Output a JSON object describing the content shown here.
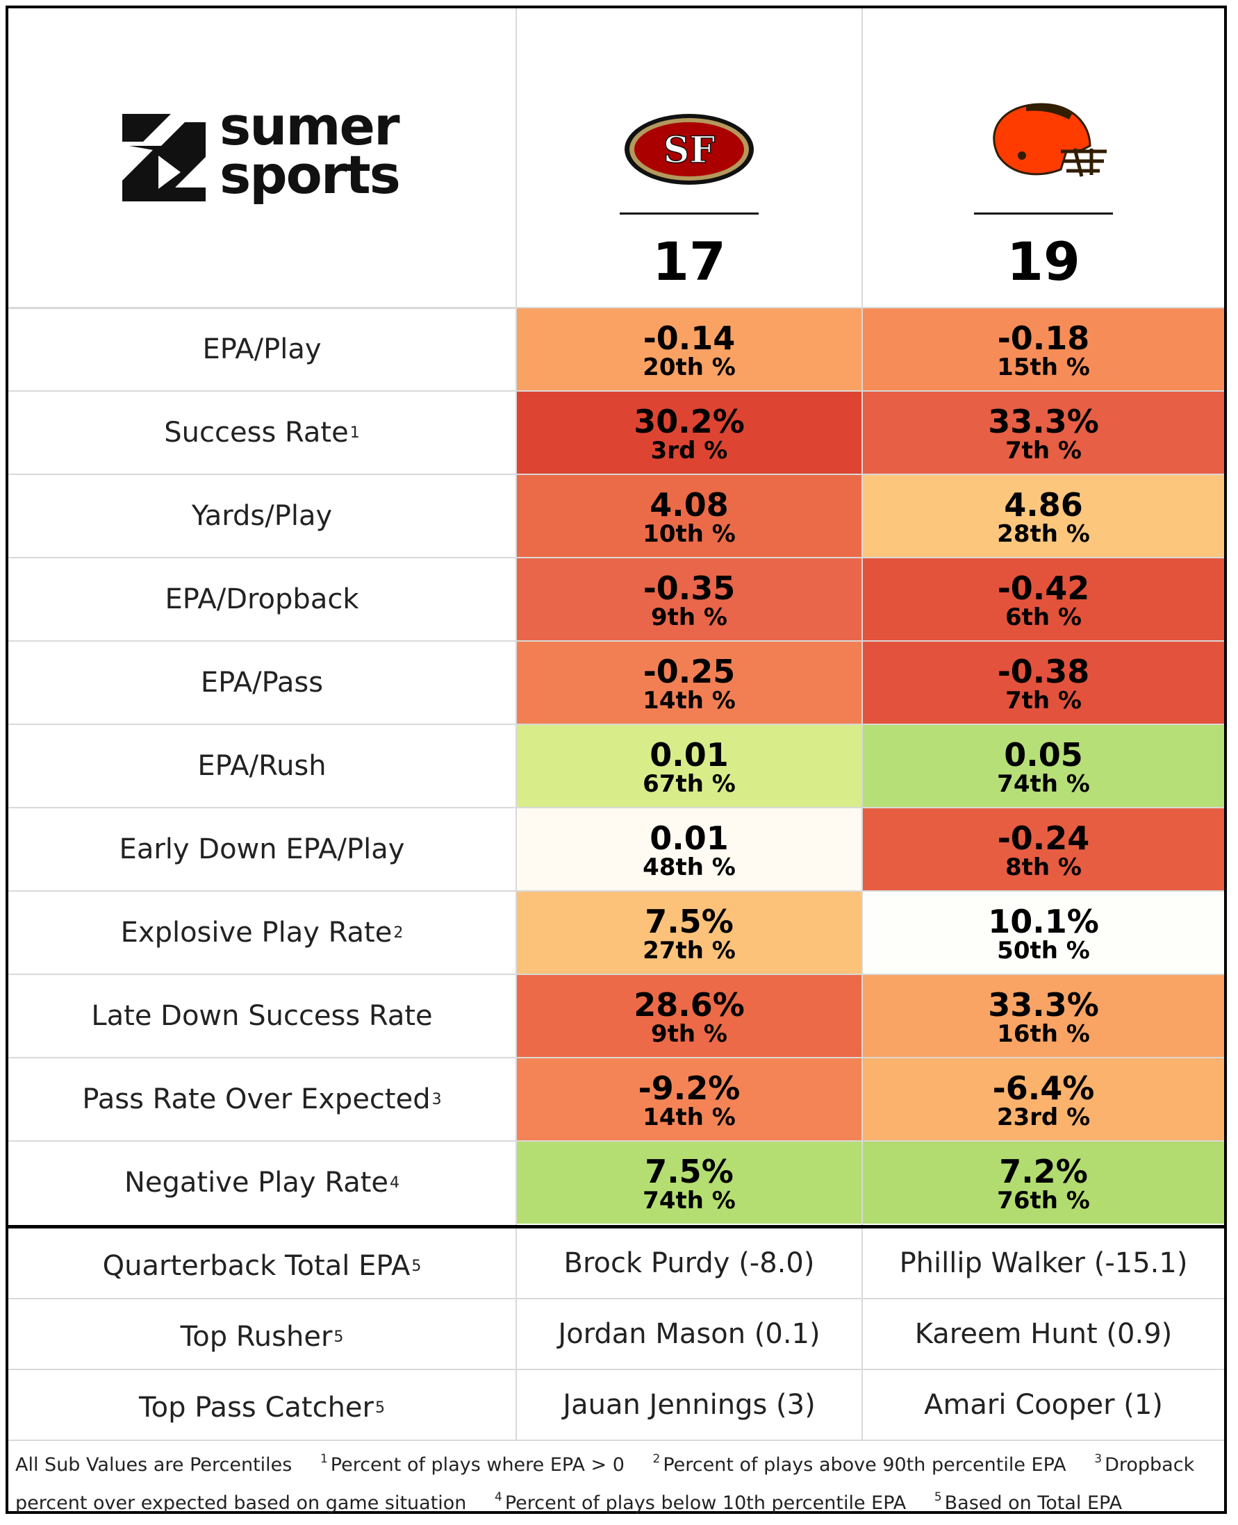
{
  "brand": {
    "line1": "sumer",
    "line2": "sports"
  },
  "teams": [
    {
      "name": "49ers",
      "logo_text": "SF",
      "score": "17"
    },
    {
      "name": "Browns",
      "score": "19"
    }
  ],
  "metrics": [
    {
      "label": "EPA/Play",
      "sup": "",
      "t1": {
        "value": "-0.14",
        "pct": "20th %",
        "color": "#f9a263"
      },
      "t2": {
        "value": "-0.18",
        "pct": "15th %",
        "color": "#f68d58"
      }
    },
    {
      "label": "Success Rate",
      "sup": "1",
      "t1": {
        "value": "30.2%",
        "pct": "3rd %",
        "color": "#dd4532"
      },
      "t2": {
        "value": "33.3%",
        "pct": "7th %",
        "color": "#e75f44"
      }
    },
    {
      "label": "Yards/Play",
      "sup": "",
      "t1": {
        "value": "4.08",
        "pct": "10th %",
        "color": "#eb6b48"
      },
      "t2": {
        "value": "4.86",
        "pct": "28th %",
        "color": "#fcc67d"
      }
    },
    {
      "label": "EPA/Dropback",
      "sup": "",
      "t1": {
        "value": "-0.35",
        "pct": "9th %",
        "color": "#e9664a"
      },
      "t2": {
        "value": "-0.42",
        "pct": "6th %",
        "color": "#e3533c"
      }
    },
    {
      "label": "EPA/Pass",
      "sup": "",
      "t1": {
        "value": "-0.25",
        "pct": "14th %",
        "color": "#f27f54"
      },
      "t2": {
        "value": "-0.38",
        "pct": "7th %",
        "color": "#e3523c"
      }
    },
    {
      "label": "EPA/Rush",
      "sup": "",
      "t1": {
        "value": "0.01",
        "pct": "67th %",
        "color": "#d8ec8a"
      },
      "t2": {
        "value": "0.05",
        "pct": "74th %",
        "color": "#b7df77"
      }
    },
    {
      "label": "Early Down EPA/Play",
      "sup": "",
      "t1": {
        "value": "0.01",
        "pct": "48th %",
        "color": "#fffbf2"
      },
      "t2": {
        "value": "-0.24",
        "pct": "8th %",
        "color": "#e75d42"
      }
    },
    {
      "label": "Explosive Play Rate",
      "sup": "2",
      "t1": {
        "value": "7.5%",
        "pct": "27th %",
        "color": "#fcc27a"
      },
      "t2": {
        "value": "10.1%",
        "pct": "50th %",
        "color": "#fefefb"
      }
    },
    {
      "label": "Late Down Success Rate",
      "sup": "",
      "t1": {
        "value": "28.6%",
        "pct": "9th %",
        "color": "#ec6a47"
      },
      "t2": {
        "value": "33.3%",
        "pct": "16th %",
        "color": "#f9a464"
      }
    },
    {
      "label": "Pass Rate Over Expected",
      "sup": "3",
      "t1": {
        "value": "-9.2%",
        "pct": "14th %",
        "color": "#f48456"
      },
      "t2": {
        "value": "-6.4%",
        "pct": "23rd %",
        "color": "#fbb26c"
      }
    },
    {
      "label": "Negative Play Rate",
      "sup": "4",
      "t1": {
        "value": "7.5%",
        "pct": "74th %",
        "color": "#b5de72"
      },
      "t2": {
        "value": "7.2%",
        "pct": "76th %",
        "color": "#b2dc70"
      }
    }
  ],
  "players": [
    {
      "label": "Quarterback Total EPA",
      "sup": "5",
      "t1": "Brock Purdy (-8.0)",
      "t2": "Phillip Walker (-15.1)"
    },
    {
      "label": "Top Rusher",
      "sup": "5",
      "t1": "Jordan Mason (0.1)",
      "t2": "Kareem Hunt (0.9)"
    },
    {
      "label": "Top Pass Catcher",
      "sup": "5",
      "t1": "Jauan Jennings (3)",
      "t2": "Amari Cooper (1)"
    }
  ],
  "footnotes": {
    "intro": "All Sub Values are Percentiles",
    "n1": {
      "num": "1",
      "text": "Percent of plays where EPA > 0"
    },
    "n2": {
      "num": "2",
      "text": "Percent of plays above 90th percentile EPA"
    },
    "n3": {
      "num": "3",
      "text": "Dropback percent over expected based on game situation"
    },
    "n4": {
      "num": "4",
      "text": "Percent of plays below 10th percentile EPA"
    },
    "n5": {
      "num": "5",
      "text": "Based on Total EPA"
    }
  }
}
